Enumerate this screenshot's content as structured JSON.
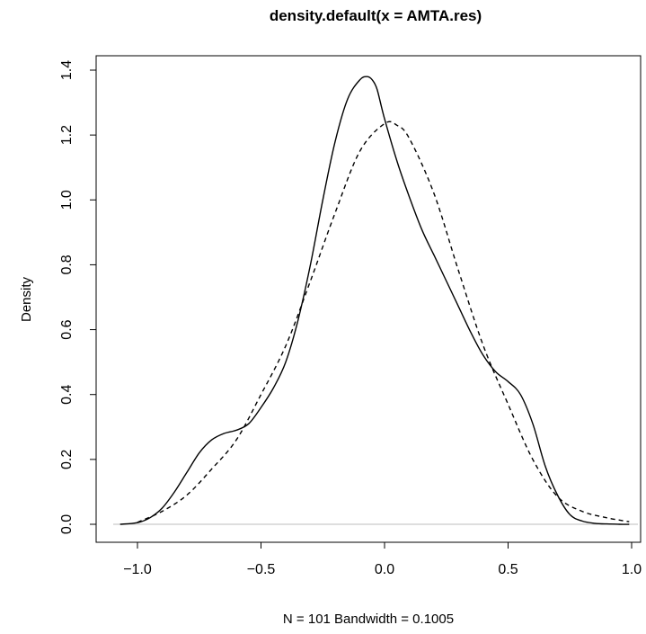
{
  "chart_data": {
    "type": "line",
    "title": "density.default(x = AMTA.res)",
    "xlabel": "N = 101   Bandwidth = 0.1005",
    "ylabel": "Density",
    "xlim": [
      -1.08,
      1.01
    ],
    "ylim": [
      0,
      1.4
    ],
    "xticks": [
      -1.0,
      -0.5,
      0.0,
      0.5,
      1.0
    ],
    "xtick_labels": [
      "−1.0",
      "−0.5",
      "0.0",
      "0.5",
      "1.0"
    ],
    "yticks": [
      0.0,
      0.2,
      0.4,
      0.6,
      0.8,
      1.0,
      1.2,
      1.4
    ],
    "ytick_labels": [
      "0.0",
      "0.2",
      "0.4",
      "0.6",
      "0.8",
      "1.0",
      "1.2",
      "1.4"
    ],
    "baseline_y": 0,
    "grid": false,
    "legend": "none",
    "series": [
      {
        "style": "solid",
        "color": "#000000",
        "x": [
          -1.07,
          -1.0,
          -0.95,
          -0.9,
          -0.85,
          -0.8,
          -0.75,
          -0.7,
          -0.65,
          -0.6,
          -0.55,
          -0.5,
          -0.45,
          -0.4,
          -0.35,
          -0.3,
          -0.25,
          -0.2,
          -0.15,
          -0.1,
          -0.07,
          -0.05,
          -0.03,
          0.0,
          0.05,
          0.1,
          0.15,
          0.2,
          0.25,
          0.3,
          0.35,
          0.4,
          0.45,
          0.5,
          0.55,
          0.6,
          0.65,
          0.7,
          0.75,
          0.8,
          0.85,
          0.9,
          0.95,
          0.99
        ],
        "y": [
          0.0,
          0.005,
          0.02,
          0.05,
          0.1,
          0.16,
          0.22,
          0.26,
          0.28,
          0.29,
          0.31,
          0.36,
          0.42,
          0.5,
          0.63,
          0.8,
          1.0,
          1.18,
          1.31,
          1.37,
          1.38,
          1.37,
          1.34,
          1.25,
          1.12,
          1.01,
          0.91,
          0.83,
          0.75,
          0.67,
          0.59,
          0.52,
          0.47,
          0.44,
          0.4,
          0.31,
          0.18,
          0.09,
          0.03,
          0.01,
          0.003,
          0.001,
          0.0,
          0.0
        ]
      },
      {
        "style": "dashed",
        "color": "#000000",
        "x": [
          -1.0,
          -0.9,
          -0.8,
          -0.7,
          -0.6,
          -0.5,
          -0.4,
          -0.3,
          -0.2,
          -0.1,
          0.0,
          0.05,
          0.1,
          0.2,
          0.3,
          0.4,
          0.5,
          0.6,
          0.7,
          0.8,
          0.9,
          0.99
        ],
        "y": [
          0.006,
          0.04,
          0.09,
          0.17,
          0.26,
          0.4,
          0.55,
          0.75,
          0.96,
          1.15,
          1.235,
          1.23,
          1.19,
          1.02,
          0.78,
          0.55,
          0.37,
          0.2,
          0.085,
          0.04,
          0.02,
          0.008
        ]
      }
    ]
  }
}
